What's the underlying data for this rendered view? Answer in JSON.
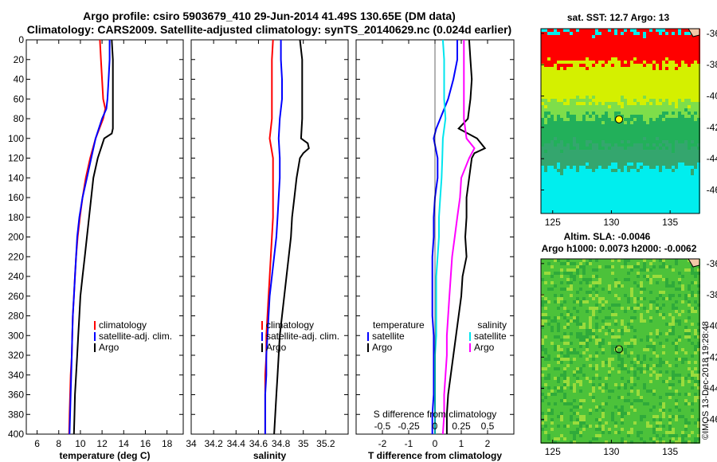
{
  "title_line1": "Argo profile: csiro 5903679_410 29-Jun-2014 41.49S 130.65E (DM data)",
  "title_line2": "Climatology: CARS2009. Satellite-adjusted climatology: synTS_20140629.nc (0.024d earlier)",
  "stamp": "©IMOS 13-Dec-2018 19:28:48",
  "colors": {
    "clim": "#ff0000",
    "sat": "#0000ff",
    "argo": "#000000",
    "cyan": "#00e5ee",
    "magenta": "#ff00ff"
  },
  "chart_data": [
    {
      "type": "line",
      "name": "temperature",
      "xlabel": "temperature (deg C)",
      "ylabel": "",
      "xlim": [
        5,
        19.5
      ],
      "ylim": [
        400,
        0
      ],
      "xticks": [
        6,
        8,
        10,
        12,
        14,
        16,
        18
      ],
      "xtick_labels": [
        "6",
        "8",
        "10",
        "12",
        "14",
        "16",
        "18"
      ],
      "yticks": [
        0,
        20,
        40,
        60,
        80,
        100,
        120,
        140,
        160,
        180,
        200,
        220,
        240,
        260,
        280,
        300,
        320,
        340,
        360,
        380,
        400
      ],
      "ytick_labels": [
        "0",
        "20",
        "40",
        "60",
        "80",
        "100",
        "120",
        "140",
        "160",
        "180",
        "200",
        "220",
        "240",
        "260",
        "280",
        "300",
        "320",
        "340",
        "360",
        "380",
        "400"
      ],
      "legend": [
        "climatology",
        "satellite-adj. clim.",
        "Argo"
      ],
      "series": [
        {
          "name": "climatology",
          "color": "#ff0000",
          "depth": [
            0,
            20,
            40,
            60,
            70,
            80,
            100,
            120,
            140,
            160,
            180,
            200,
            220,
            240,
            260,
            280,
            300,
            320,
            340,
            360,
            380,
            400
          ],
          "values": [
            11.8,
            11.9,
            12.0,
            12.1,
            12.3,
            12.1,
            11.4,
            10.9,
            10.5,
            10.2,
            9.95,
            9.75,
            9.6,
            9.5,
            9.4,
            9.3,
            9.25,
            9.2,
            9.1,
            9.05,
            9.0,
            8.95
          ]
        },
        {
          "name": "satellite-adj. clim.",
          "color": "#0000ff",
          "depth": [
            0,
            20,
            40,
            60,
            70,
            80,
            100,
            120,
            140,
            160,
            180,
            200,
            220,
            240,
            260,
            280,
            300,
            320,
            340,
            360,
            380,
            400
          ],
          "values": [
            12.7,
            12.7,
            12.6,
            12.5,
            12.4,
            12.0,
            11.4,
            11.0,
            10.6,
            10.2,
            9.9,
            9.7,
            9.6,
            9.5,
            9.4,
            9.3,
            9.25,
            9.2,
            9.15,
            9.1,
            9.05,
            9.0
          ]
        },
        {
          "name": "Argo",
          "color": "#000000",
          "depth": [
            0,
            20,
            40,
            60,
            80,
            90,
            95,
            100,
            120,
            140,
            160,
            180,
            200,
            220,
            240,
            260,
            280,
            300,
            320,
            340,
            360,
            380,
            400
          ],
          "values": [
            12.9,
            13.0,
            13.0,
            13.0,
            13.0,
            13.0,
            12.9,
            12.2,
            11.6,
            11.2,
            11.0,
            10.8,
            10.6,
            10.4,
            10.2,
            10.0,
            9.9,
            9.8,
            9.7,
            9.6,
            9.5,
            9.45,
            9.4
          ]
        }
      ]
    },
    {
      "type": "line",
      "name": "salinity",
      "xlabel": "salinity",
      "xlim": [
        34.0,
        35.4
      ],
      "ylim": [
        400,
        0
      ],
      "xticks": [
        34.0,
        34.2,
        34.4,
        34.6,
        34.8,
        35.0,
        35.2
      ],
      "xtick_labels": [
        "34",
        "34.2",
        "34.4",
        "34.6",
        "34.8",
        "35",
        "35.2"
      ],
      "legend": [
        "climatology",
        "satellite-adj. clim.",
        "Argo"
      ],
      "series": [
        {
          "name": "climatology",
          "color": "#ff0000",
          "depth": [
            0,
            20,
            40,
            60,
            80,
            100,
            120,
            140,
            160,
            180,
            200,
            220,
            240,
            260,
            280,
            300,
            320,
            340,
            360,
            380,
            400
          ],
          "values": [
            34.73,
            34.72,
            34.72,
            34.72,
            34.72,
            34.7,
            34.73,
            34.73,
            34.73,
            34.73,
            34.72,
            34.71,
            34.7,
            34.69,
            34.68,
            34.67,
            34.67,
            34.66,
            34.66,
            34.66,
            34.66
          ]
        },
        {
          "name": "satellite-adj. clim.",
          "color": "#0000ff",
          "depth": [
            0,
            20,
            40,
            60,
            80,
            100,
            120,
            140,
            160,
            180,
            200,
            220,
            240,
            260,
            280,
            300,
            320,
            340,
            360,
            380,
            400
          ],
          "values": [
            34.8,
            34.8,
            34.81,
            34.81,
            34.79,
            34.78,
            34.79,
            34.79,
            34.78,
            34.77,
            34.76,
            34.74,
            34.72,
            34.7,
            34.69,
            34.68,
            34.67,
            34.67,
            34.66,
            34.66,
            34.66
          ]
        },
        {
          "name": "Argo",
          "color": "#000000",
          "depth": [
            0,
            20,
            40,
            60,
            80,
            100,
            105,
            110,
            115,
            120,
            140,
            160,
            180,
            200,
            220,
            240,
            260,
            280,
            300,
            320,
            340,
            360,
            380,
            400
          ],
          "values": [
            34.97,
            34.99,
            34.99,
            34.99,
            34.99,
            34.98,
            35.04,
            35.05,
            35.0,
            34.97,
            34.94,
            34.92,
            34.9,
            34.89,
            34.87,
            34.85,
            34.83,
            34.81,
            34.79,
            34.78,
            34.77,
            34.76,
            34.75,
            34.74
          ]
        }
      ]
    },
    {
      "type": "line",
      "name": "difference",
      "xlabel": "T difference from climatology",
      "top_label": "S difference from climatology",
      "xlim": [
        -3,
        3
      ],
      "ylim": [
        400,
        0
      ],
      "xticks": [
        -2,
        -1,
        0,
        1,
        2
      ],
      "xtick_labels": [
        "-2",
        "-1",
        "0",
        "1",
        "2"
      ],
      "sticks": [
        -2,
        -1,
        0,
        1,
        2
      ],
      "stick_labels": [
        "-0.5",
        "-0.25",
        "0",
        "0.25",
        "0.5"
      ],
      "legend_left_title": "temperature",
      "legend_left": [
        "satellite",
        "Argo"
      ],
      "legend_right_title": "salinity",
      "legend_right": [
        "satellite",
        "Argo"
      ],
      "series": [
        {
          "name": "T satellite",
          "color": "#0000ff",
          "depth": [
            0,
            20,
            40,
            60,
            80,
            90,
            100,
            120,
            140,
            160,
            180,
            200,
            220,
            240,
            260,
            280,
            300,
            320,
            340,
            360,
            380,
            400
          ],
          "values": [
            0.85,
            0.85,
            0.7,
            0.5,
            0.2,
            0.05,
            -0.05,
            0.1,
            0.1,
            0.0,
            -0.05,
            -0.05,
            -0.1,
            -0.1,
            -0.1,
            -0.1,
            -0.05,
            -0.05,
            -0.05,
            -0.05,
            -0.1,
            -0.1
          ]
        },
        {
          "name": "T Argo",
          "color": "#000000",
          "depth": [
            0,
            20,
            40,
            60,
            80,
            90,
            100,
            110,
            115,
            120,
            140,
            160,
            180,
            200,
            220,
            240,
            260,
            280,
            300,
            320,
            340,
            360,
            380,
            400
          ],
          "values": [
            1.3,
            1.35,
            1.4,
            1.35,
            1.25,
            0.9,
            1.6,
            1.9,
            1.5,
            1.4,
            1.3,
            1.2,
            1.2,
            1.15,
            1.2,
            1.05,
            1.0,
            0.9,
            0.8,
            0.7,
            0.6,
            0.5,
            0.45,
            0.45
          ]
        },
        {
          "name": "S satellite",
          "color": "#00e5ee",
          "depth": [
            0,
            20,
            40,
            60,
            80,
            100,
            120,
            140,
            160,
            180,
            200,
            220,
            240,
            260,
            280,
            300,
            320,
            340,
            360,
            380,
            400
          ],
          "values": [
            0.3,
            0.35,
            0.35,
            0.35,
            0.4,
            0.3,
            0.28,
            0.25,
            0.2,
            0.15,
            0.15,
            0.1,
            0.05,
            0.05,
            0.05,
            0.05,
            0.0,
            0.0,
            0.0,
            0.0,
            0.0
          ]
        },
        {
          "name": "S Argo",
          "color": "#ff00ff",
          "depth": [
            0,
            20,
            40,
            60,
            80,
            100,
            110,
            120,
            140,
            160,
            180,
            200,
            220,
            240,
            260,
            280,
            300,
            320,
            340,
            360,
            380,
            400
          ],
          "values": [
            1.1,
            1.1,
            1.1,
            1.1,
            1.1,
            1.2,
            1.5,
            1.3,
            1.0,
            0.95,
            0.85,
            0.75,
            0.65,
            0.6,
            0.55,
            0.5,
            0.45,
            0.45,
            0.4,
            0.35,
            0.35,
            0.3
          ]
        }
      ]
    },
    {
      "type": "heatmap",
      "name": "sst-map",
      "title": "sat. SST: 12.7 Argo: 13",
      "xlim": [
        124,
        137.5
      ],
      "ylim": [
        -47.5,
        -35.7
      ],
      "xticks": [
        125,
        130,
        135
      ],
      "xtick_labels": [
        "125",
        "130",
        "135"
      ],
      "yticks": [
        -36,
        -38,
        -40,
        -42,
        -44,
        -46
      ],
      "ytick_labels": [
        "-36",
        "-38",
        "-40",
        "-42",
        "-44",
        "-46"
      ],
      "marker": [
        130.65,
        -41.49
      ],
      "bands": [
        {
          "lat_top": -35.7,
          "lat_bottom": -37.8,
          "color": "#ff0000"
        },
        {
          "lat_top": -37.8,
          "lat_bottom": -40.3,
          "color": "#d4f000"
        },
        {
          "lat_top": -40.3,
          "lat_bottom": -41.2,
          "color": "#7ede4a"
        },
        {
          "lat_top": -41.2,
          "lat_bottom": -43.0,
          "color": "#22b05a"
        },
        {
          "lat_top": -43.0,
          "lat_bottom": -44.5,
          "color": "#34a66e"
        },
        {
          "lat_top": -44.5,
          "lat_bottom": -47.5,
          "color": "#00eeee"
        }
      ]
    },
    {
      "type": "heatmap",
      "name": "sla-map",
      "title": "Altim. SLA: -0.0046",
      "subtitle": "Argo h1000: 0.0073 h2000: -0.0062",
      "xlim": [
        124,
        137.5
      ],
      "ylim": [
        -47.5,
        -35.7
      ],
      "xticks": [
        125,
        130,
        135
      ],
      "xtick_labels": [
        "125",
        "130",
        "135"
      ],
      "yticks": [
        -36,
        -38,
        -40,
        -42,
        -44,
        -46
      ],
      "ytick_labels": [
        "-36",
        "-38",
        "-40",
        "-42",
        "-44",
        "-46"
      ],
      "marker": [
        130.65,
        -41.49
      ],
      "bands": [
        {
          "lat_top": -35.7,
          "lat_bottom": -47.5,
          "color": "#4cc23a"
        }
      ]
    }
  ]
}
